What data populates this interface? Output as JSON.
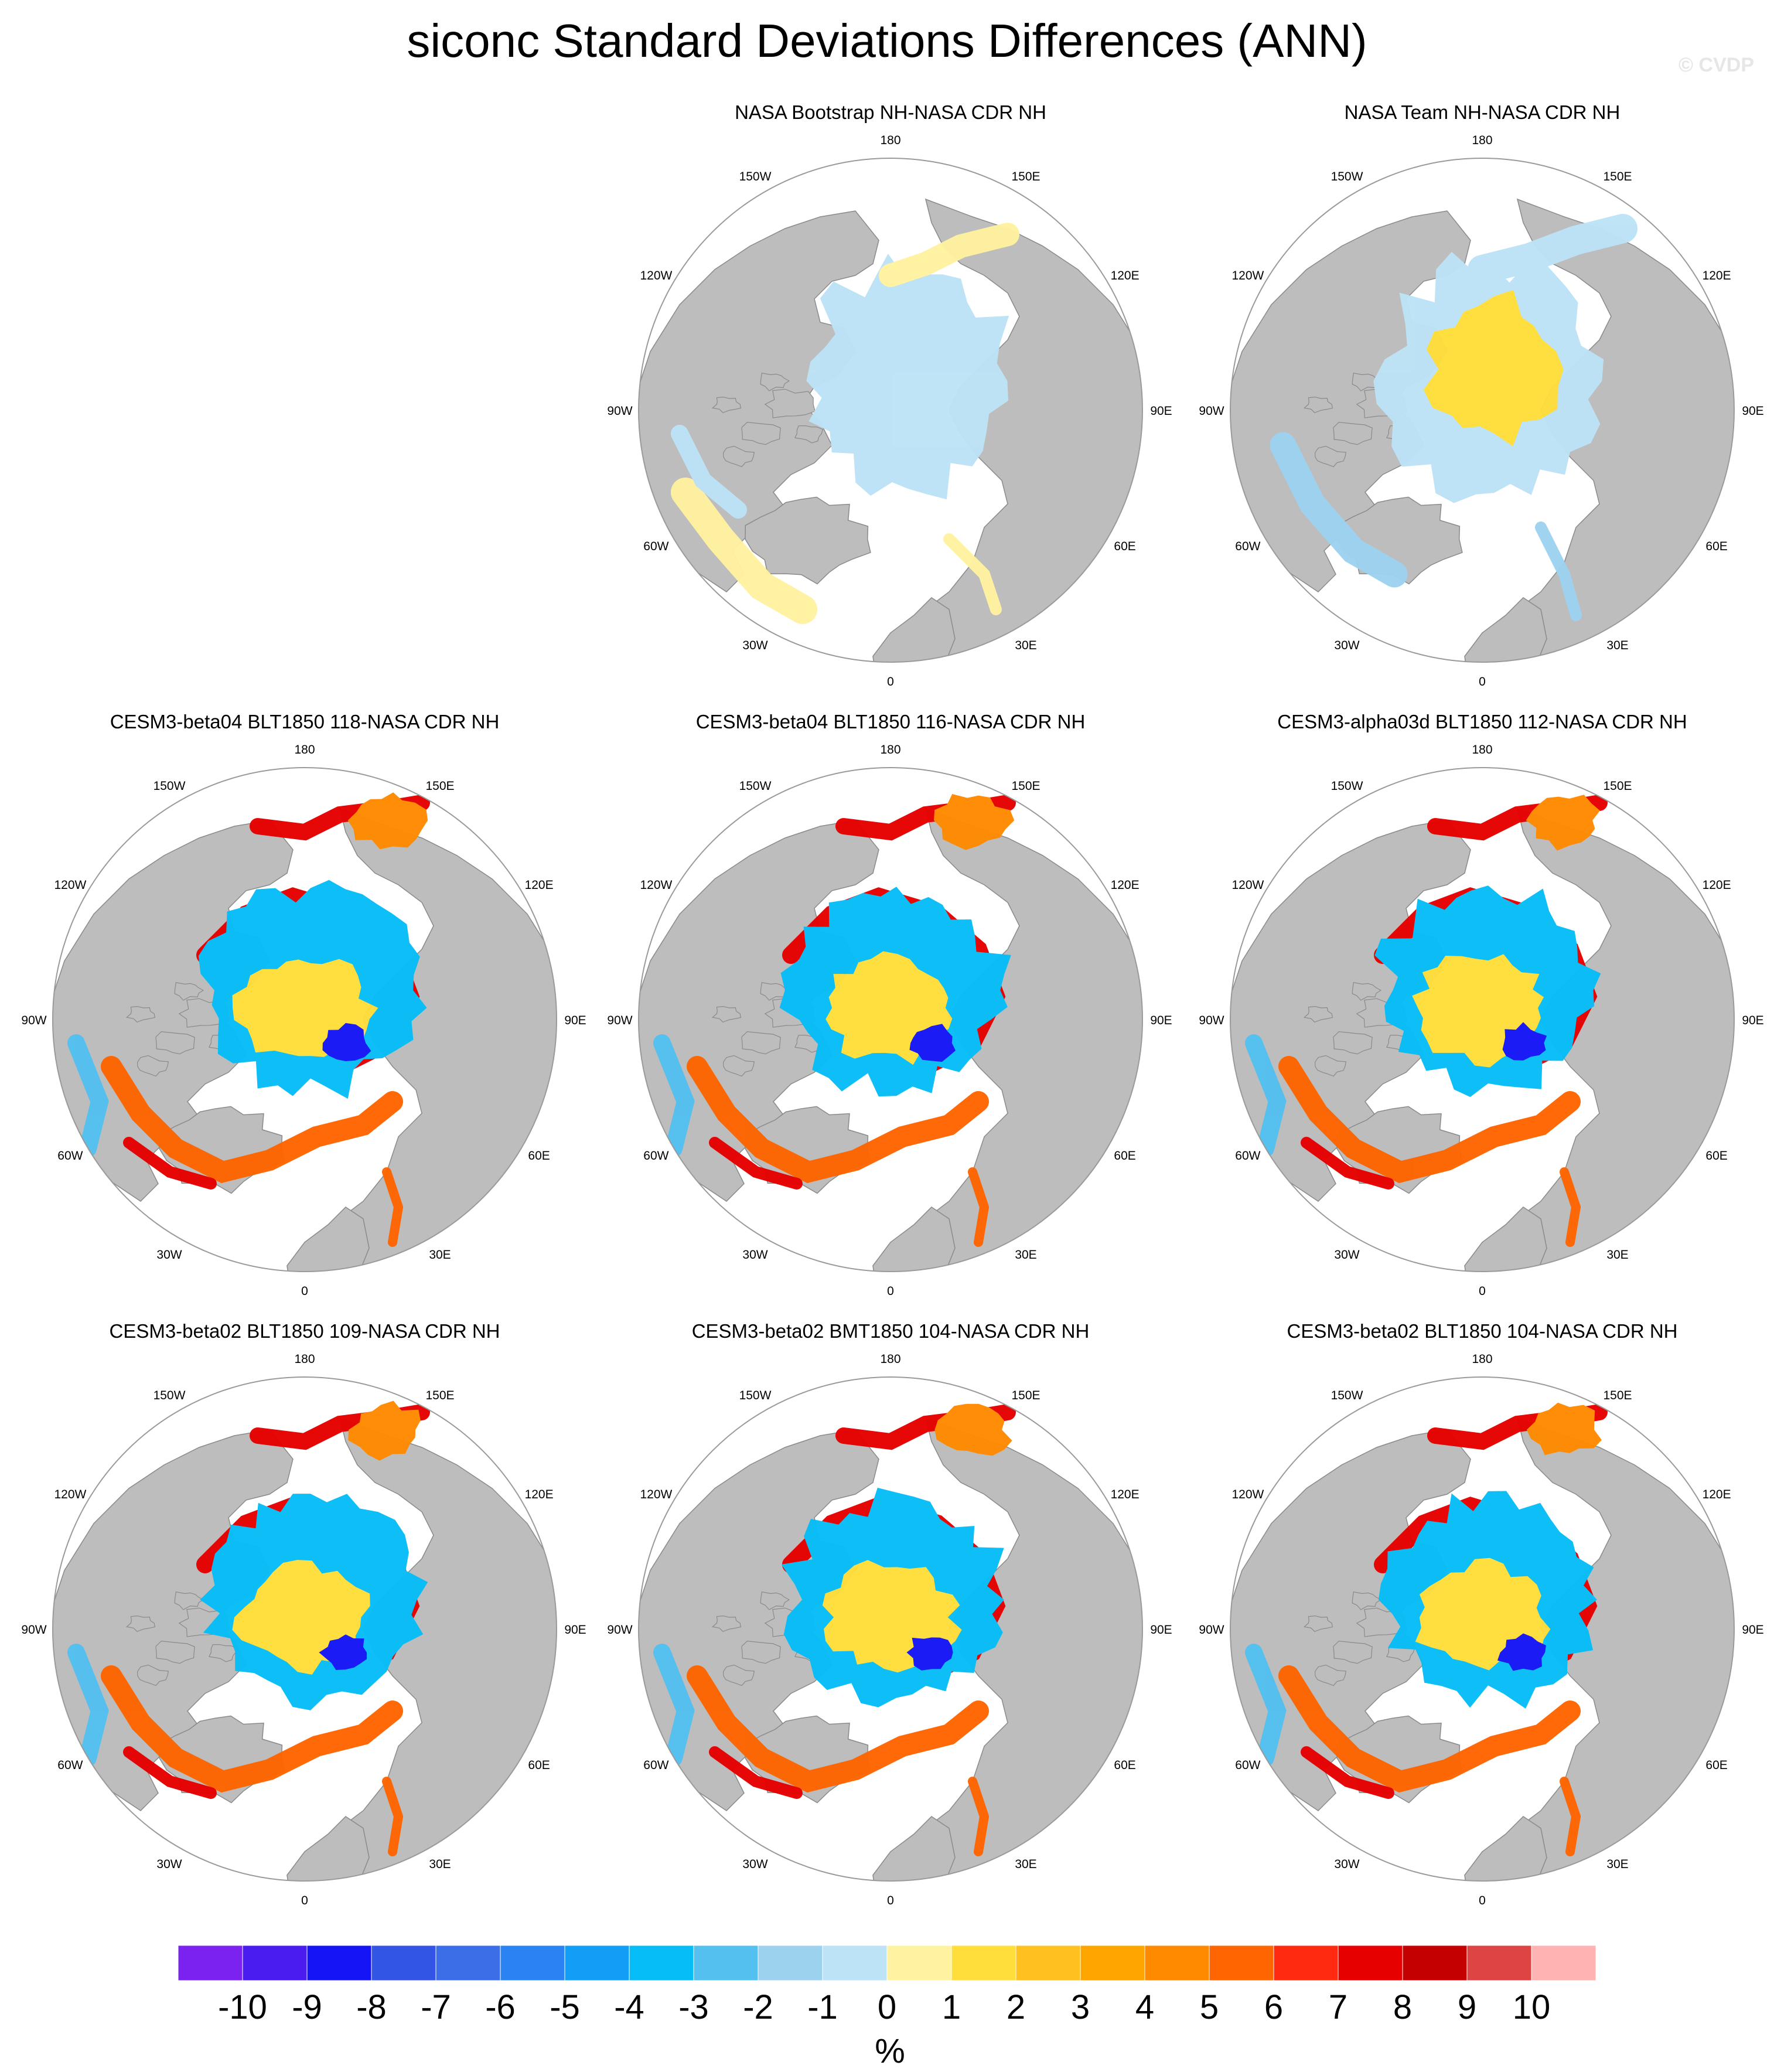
{
  "title": "siconc Standard Deviations Differences (ANN)",
  "watermark": "© CVDP",
  "longitude_labels": [
    "180",
    "150E",
    "120E",
    "90E",
    "60E",
    "30E",
    "0",
    "30W",
    "60W",
    "90W",
    "120W",
    "150W"
  ],
  "panels": [
    {
      "title": "NASA Bootstrap NH-NASA CDR NH",
      "style": "obs_bootstrap"
    },
    {
      "title": "NASA Team NH-NASA CDR NH",
      "style": "obs_team"
    },
    {
      "title": "CESM3-beta04 BLT1850 118-NASA CDR NH",
      "style": "model"
    },
    {
      "title": "CESM3-beta04 BLT1850 116-NASA CDR NH",
      "style": "model"
    },
    {
      "title": "CESM3-alpha03d BLT1850 112-NASA CDR NH",
      "style": "model"
    },
    {
      "title": "CESM3-beta02 BLT1850 109-NASA CDR NH",
      "style": "model"
    },
    {
      "title": "CESM3-beta02 BMT1850 104-NASA CDR NH",
      "style": "model"
    },
    {
      "title": "CESM3-beta02 BLT1850 104-NASA CDR NH",
      "style": "model"
    }
  ],
  "colorbar": {
    "unit": "%",
    "ticks": [
      "-10",
      "-9",
      "-8",
      "-7",
      "-6",
      "-5",
      "-4",
      "-3",
      "-2",
      "-1",
      "0",
      "1",
      "2",
      "3",
      "4",
      "5",
      "6",
      "7",
      "8",
      "9",
      "10"
    ],
    "colors": [
      "#7b22f0",
      "#4a1cf0",
      "#1414f5",
      "#3355e6",
      "#3c6ee8",
      "#2b82f2",
      "#129df7",
      "#07bdf7",
      "#53c0f0",
      "#9dd2ef",
      "#bde3f6",
      "#fff2a0",
      "#ffdd3a",
      "#ffc020",
      "#ffa500",
      "#ff8a00",
      "#ff6500",
      "#ff2a10",
      "#e60000",
      "#c40000",
      "#dd4444",
      "#ffb3b3"
    ]
  },
  "colors": {
    "land": "#bdbdbd",
    "ocean": "#ffffff",
    "coast": "#8a8a8a"
  }
}
